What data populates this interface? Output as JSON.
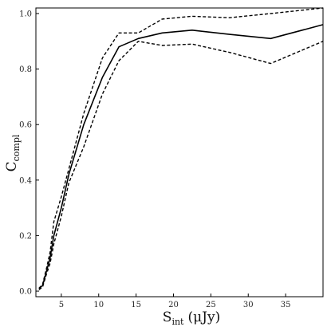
{
  "chart_data": {
    "type": "line",
    "xlabel": "S",
    "xlabel_sub": "int",
    "xlabel_unit": "(μJy)",
    "ylabel": "C",
    "ylabel_sub": "compl",
    "xlim": [
      1.6,
      40
    ],
    "ylim": [
      -0.02,
      1.02
    ],
    "x_ticks": [
      5,
      10,
      15,
      20,
      25,
      30,
      35
    ],
    "y_ticks": [
      0.0,
      0.2,
      0.4,
      0.6,
      0.8,
      1.0
    ],
    "x_tick_labels": [
      "5",
      "10",
      "15",
      "20",
      "25",
      "30",
      "35"
    ],
    "y_tick_labels": [
      "0.0",
      "0.2",
      "0.4",
      "0.6",
      "0.8",
      "1.0"
    ],
    "grid": false,
    "series": [
      {
        "style": "solid",
        "x": [
          2.0,
          2.5,
          3.0,
          3.5,
          4.0,
          5.0,
          6.0,
          8.0,
          10.5,
          12.7,
          15.3,
          18.5,
          22.5,
          27.5,
          33.0,
          40.0
        ],
        "y": [
          0.01,
          0.02,
          0.07,
          0.12,
          0.2,
          0.3,
          0.42,
          0.6,
          0.77,
          0.88,
          0.91,
          0.93,
          0.94,
          0.925,
          0.91,
          0.96
        ]
      },
      {
        "style": "dashed",
        "x": [
          2.0,
          2.5,
          3.0,
          3.5,
          4.0,
          5.0,
          6.0,
          8.0,
          10.5,
          12.7,
          15.3,
          18.5,
          22.5,
          27.5,
          33.0,
          40.0
        ],
        "y": [
          0.01,
          0.025,
          0.08,
          0.14,
          0.25,
          0.34,
          0.44,
          0.64,
          0.84,
          0.93,
          0.93,
          0.98,
          0.99,
          0.985,
          1.0,
          1.02
        ]
      },
      {
        "style": "dashed",
        "x": [
          2.0,
          2.5,
          3.0,
          3.5,
          4.0,
          5.0,
          6.0,
          8.0,
          10.5,
          12.7,
          15.3,
          18.5,
          22.5,
          27.5,
          33.0,
          40.0
        ],
        "y": [
          0.005,
          0.015,
          0.06,
          0.1,
          0.17,
          0.27,
          0.39,
          0.52,
          0.71,
          0.83,
          0.9,
          0.885,
          0.89,
          0.86,
          0.82,
          0.9
        ]
      }
    ]
  }
}
